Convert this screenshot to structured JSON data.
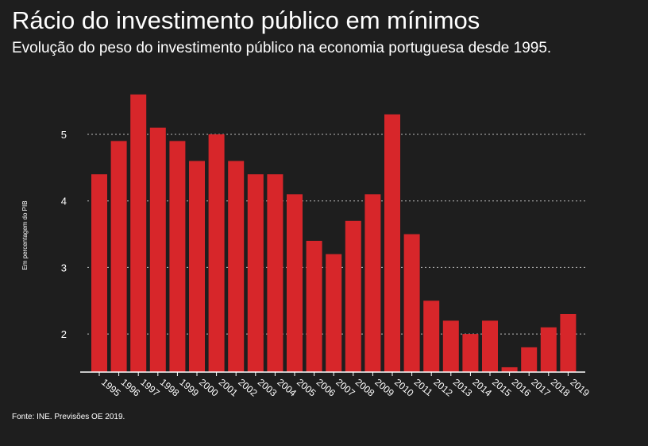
{
  "chart_data": {
    "type": "bar",
    "title": "Rácio do investimento público em mínimos",
    "subtitle": "Evolução do peso do investimento público na economia portuguesa desde 1995.",
    "ylabel": "Em percentagem do PIB",
    "xlabel": "",
    "source": "Fonte: INE. Previsões OE 2019.",
    "categories": [
      "1995",
      "1996",
      "1997",
      "1998",
      "1999",
      "2000",
      "2001",
      "2002",
      "2003",
      "2004",
      "2005",
      "2006",
      "2007",
      "2008",
      "2009",
      "2010",
      "2011",
      "2012",
      "2013",
      "2014",
      "2015",
      "2016",
      "2017",
      "2018",
      "2019"
    ],
    "values": [
      4.4,
      4.9,
      5.6,
      5.1,
      4.9,
      4.6,
      5.0,
      4.6,
      4.4,
      4.4,
      4.1,
      3.4,
      3.2,
      3.7,
      4.1,
      5.3,
      3.5,
      2.5,
      2.2,
      2.0,
      2.2,
      1.5,
      1.8,
      2.1,
      2.3
    ],
    "yticks": [
      2,
      3,
      4,
      5
    ],
    "ylim": [
      1.43,
      6
    ],
    "grid": true,
    "bar_color": "#d7262a"
  }
}
